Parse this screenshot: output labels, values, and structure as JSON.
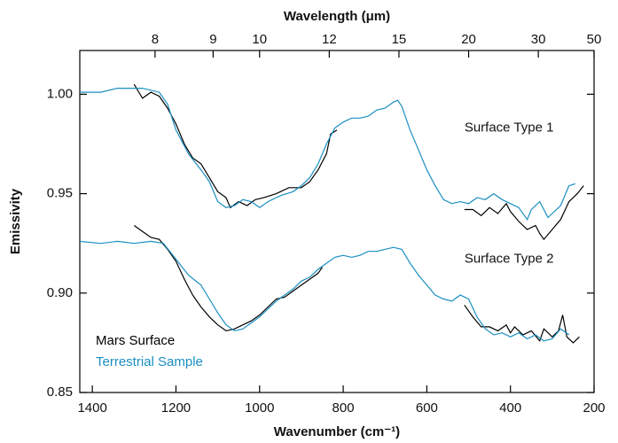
{
  "chart_data": {
    "type": "line",
    "xlabel": "Wavenumber (cm⁻¹)",
    "x2label": "Wavelength (μm)",
    "ylabel": "Emissivity",
    "xlim": [
      1430,
      200
    ],
    "xticks": [
      1400,
      1200,
      1000,
      800,
      600,
      400,
      200
    ],
    "x2ticks": [
      8,
      9,
      10,
      12,
      15,
      20,
      30,
      50
    ],
    "ylim": [
      0.85,
      1.022
    ],
    "yticks": [
      {
        "value": 0.85,
        "label": "0.85"
      },
      {
        "value": 0.9,
        "label": "0.90"
      },
      {
        "value": 0.95,
        "label": "0.95"
      },
      {
        "value": 1.0,
        "label": "1.00"
      }
    ],
    "annotations": [
      {
        "text": "Surface Type 1",
        "x": 510,
        "y": 0.983
      },
      {
        "text": "Surface Type 2",
        "x": 510,
        "y": 0.917
      }
    ],
    "legend_position": "lower left",
    "series": [
      {
        "name": "Mars Surface",
        "color": "#000000",
        "curves": [
          {
            "x": [
              1300,
              1280,
              1260,
              1240,
              1220,
              1200,
              1180,
              1160,
              1140,
              1120,
              1100,
              1080,
              1070,
              1050,
              1030,
              1010,
              990,
              960,
              930,
              900,
              880,
              860,
              840,
              830,
              815,
              null,
              510,
              490,
              470,
              450,
              430,
              410,
              400,
              380,
              360,
              340,
              330,
              320,
              300,
              280,
              260,
              240,
              225
            ],
            "values": [
              1.005,
              0.998,
              1.001,
              0.999,
              0.993,
              0.985,
              0.975,
              0.968,
              0.965,
              0.958,
              0.951,
              0.948,
              0.943,
              0.946,
              0.944,
              0.947,
              0.948,
              0.95,
              0.953,
              0.953,
              0.956,
              0.962,
              0.97,
              0.98,
              0.982,
              null,
              0.942,
              0.942,
              0.939,
              0.943,
              0.94,
              0.945,
              0.941,
              0.936,
              0.932,
              0.934,
              0.93,
              0.927,
              0.932,
              0.937,
              0.946,
              0.95,
              0.954
            ]
          },
          {
            "x": [
              1300,
              1280,
              1260,
              1240,
              1220,
              1200,
              1180,
              1160,
              1140,
              1120,
              1100,
              1080,
              1060,
              1040,
              1020,
              1000,
              980,
              960,
              940,
              920,
              900,
              880,
              860,
              850,
              null,
              510,
              490,
              470,
              450,
              430,
              410,
              400,
              390,
              370,
              350,
              330,
              320,
              300,
              285,
              275,
              265,
              250,
              235
            ],
            "values": [
              0.934,
              0.931,
              0.928,
              0.927,
              0.922,
              0.916,
              0.907,
              0.899,
              0.893,
              0.888,
              0.884,
              0.881,
              0.882,
              0.884,
              0.886,
              0.889,
              0.893,
              0.897,
              0.898,
              0.901,
              0.904,
              0.907,
              0.91,
              0.913,
              null,
              0.894,
              0.888,
              0.883,
              0.883,
              0.881,
              0.884,
              0.88,
              0.883,
              0.879,
              0.881,
              0.876,
              0.882,
              0.878,
              0.881,
              0.889,
              0.878,
              0.875,
              0.878
            ]
          }
        ]
      },
      {
        "name": "Terrestrial Sample",
        "color": "#1a8fc1",
        "curves": [
          {
            "x": [
              1430,
              1380,
              1340,
              1280,
              1240,
              1220,
              1200,
              1170,
              1140,
              1120,
              1100,
              1080,
              1060,
              1040,
              1020,
              1000,
              980,
              950,
              920,
              900,
              880,
              860,
              840,
              820,
              800,
              780,
              760,
              740,
              720,
              700,
              680,
              670,
              660,
              640,
              620,
              600,
              580,
              560,
              540,
              520,
              500,
              480,
              460,
              440,
              420,
              400,
              380,
              360,
              350,
              330,
              310,
              300,
              280,
              260,
              245
            ],
            "values": [
              1.001,
              1.001,
              1.003,
              1.003,
              1.001,
              0.995,
              0.982,
              0.97,
              0.962,
              0.956,
              0.946,
              0.943,
              0.944,
              0.947,
              0.946,
              0.943,
              0.946,
              0.949,
              0.951,
              0.954,
              0.958,
              0.965,
              0.975,
              0.983,
              0.986,
              0.988,
              0.988,
              0.989,
              0.992,
              0.993,
              0.996,
              0.997,
              0.994,
              0.982,
              0.972,
              0.962,
              0.954,
              0.947,
              0.945,
              0.946,
              0.945,
              0.948,
              0.947,
              0.95,
              0.947,
              0.945,
              0.943,
              0.937,
              0.942,
              0.946,
              0.938,
              0.94,
              0.944,
              0.954,
              0.955
            ]
          },
          {
            "x": [
              1430,
              1380,
              1340,
              1300,
              1260,
              1230,
              1200,
              1170,
              1140,
              1120,
              1100,
              1080,
              1060,
              1040,
              1020,
              1000,
              980,
              960,
              940,
              920,
              900,
              880,
              860,
              840,
              820,
              800,
              780,
              760,
              740,
              720,
              700,
              680,
              660,
              640,
              620,
              600,
              580,
              560,
              540,
              520,
              500,
              480,
              460,
              440,
              420,
              400,
              380,
              360,
              340,
              320,
              300,
              280,
              260
            ],
            "values": [
              0.926,
              0.925,
              0.926,
              0.925,
              0.926,
              0.925,
              0.917,
              0.909,
              0.904,
              0.897,
              0.89,
              0.884,
              0.881,
              0.882,
              0.885,
              0.888,
              0.892,
              0.896,
              0.899,
              0.902,
              0.906,
              0.908,
              0.912,
              0.915,
              0.918,
              0.919,
              0.918,
              0.919,
              0.921,
              0.921,
              0.922,
              0.923,
              0.922,
              0.915,
              0.909,
              0.904,
              0.899,
              0.897,
              0.896,
              0.899,
              0.897,
              0.888,
              0.882,
              0.879,
              0.88,
              0.878,
              0.88,
              0.877,
              0.879,
              0.876,
              0.877,
              0.882,
              0.879
            ]
          }
        ]
      }
    ]
  }
}
